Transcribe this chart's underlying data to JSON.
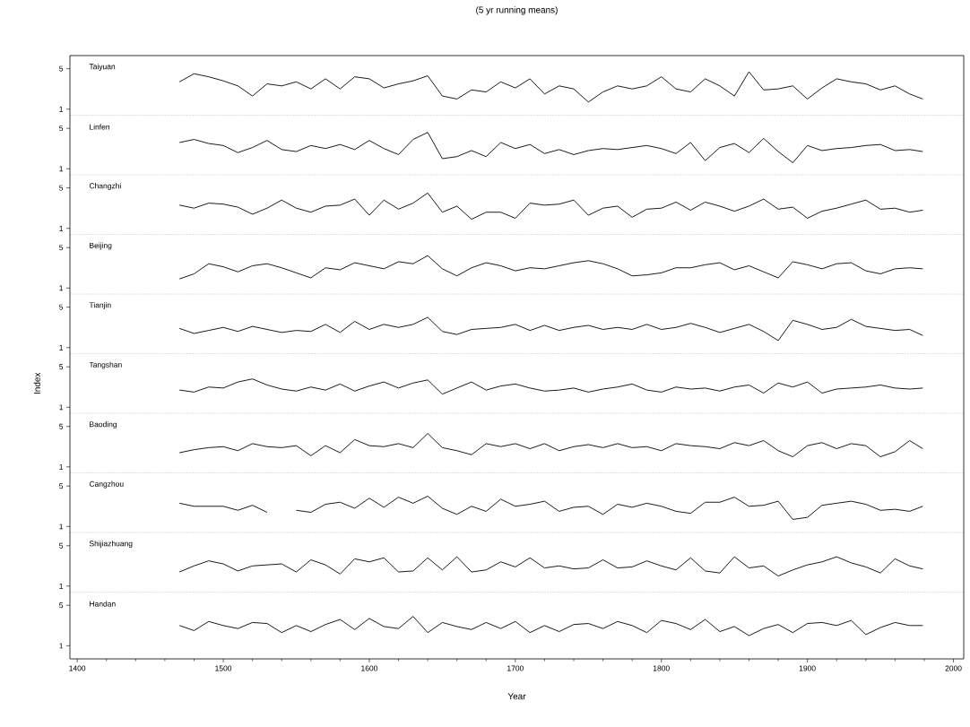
{
  "chart_data": [
    {
      "type": "line",
      "title": "(5 yr running means)",
      "annotations": [
        "Taiyuan"
      ],
      "xlim": [
        1395,
        2007
      ],
      "ylim": [
        0.4,
        6.3
      ],
      "yticks": [
        1,
        5
      ],
      "tick_labels": "y",
      "x": [
        1470,
        1480,
        1490,
        1500,
        1510,
        1520,
        1530,
        1540,
        1550,
        1560,
        1570,
        1580,
        1590,
        1600,
        1610,
        1620,
        1630,
        1640,
        1650,
        1660,
        1670,
        1680,
        1690,
        1700,
        1710,
        1720,
        1730,
        1740,
        1750,
        1760,
        1770,
        1780,
        1790,
        1800,
        1810,
        1820,
        1830,
        1840,
        1850,
        1860,
        1870,
        1880,
        1890,
        1900,
        1910,
        1920,
        1930,
        1940,
        1950,
        1960,
        1970,
        1979
      ],
      "series": [
        {
          "color": "#000000",
          "values": [
            3.7,
            4.5,
            4.2,
            3.8,
            3.3,
            2.3,
            3.5,
            3.3,
            3.7,
            3.0,
            4.0,
            3.0,
            4.2,
            4.0,
            3.1,
            3.5,
            3.8,
            4.3,
            2.3,
            2.0,
            2.9,
            2.7,
            3.7,
            3.1,
            4.0,
            2.5,
            3.3,
            3.0,
            1.7,
            2.7,
            3.3,
            3.0,
            3.3,
            4.2,
            3.0,
            2.7,
            4.0,
            3.3,
            2.3,
            4.7,
            2.9,
            3.0,
            3.3,
            2.0,
            3.1,
            4.0,
            3.7,
            3.5,
            2.9,
            3.3,
            2.5,
            2.0
          ]
        }
      ]
    },
    {
      "type": "line",
      "annotations": [
        "Linfen"
      ],
      "xlim": [
        1395,
        2007
      ],
      "ylim": [
        0.4,
        6.3
      ],
      "yticks": [
        1,
        5
      ],
      "tick_labels": "y",
      "x": [
        1470,
        1480,
        1490,
        1500,
        1510,
        1520,
        1530,
        1540,
        1550,
        1560,
        1570,
        1580,
        1590,
        1600,
        1610,
        1620,
        1630,
        1640,
        1650,
        1660,
        1670,
        1680,
        1690,
        1700,
        1710,
        1720,
        1730,
        1740,
        1750,
        1760,
        1770,
        1780,
        1790,
        1800,
        1810,
        1820,
        1830,
        1840,
        1850,
        1860,
        1870,
        1880,
        1890,
        1900,
        1910,
        1920,
        1930,
        1940,
        1950,
        1960,
        1970,
        1979
      ],
      "series": [
        {
          "color": "#000000",
          "values": [
            3.6,
            3.9,
            3.5,
            3.3,
            2.6,
            3.1,
            3.8,
            2.9,
            2.7,
            3.3,
            3.0,
            3.4,
            2.9,
            3.8,
            3.0,
            2.4,
            3.9,
            4.6,
            2.0,
            2.2,
            2.8,
            2.2,
            3.6,
            3.0,
            3.4,
            2.5,
            2.9,
            2.4,
            2.8,
            3.0,
            2.9,
            3.1,
            3.3,
            3.0,
            2.5,
            3.6,
            1.8,
            3.1,
            3.5,
            2.6,
            4.0,
            2.7,
            1.6,
            3.3,
            2.8,
            3.0,
            3.1,
            3.3,
            3.4,
            2.8,
            2.9,
            2.7
          ]
        }
      ]
    },
    {
      "type": "line",
      "annotations": [
        "Changzhi"
      ],
      "xlim": [
        1395,
        2007
      ],
      "ylim": [
        0.4,
        6.3
      ],
      "yticks": [
        1,
        5
      ],
      "tick_labels": "y",
      "x": [
        1470,
        1480,
        1490,
        1500,
        1510,
        1520,
        1530,
        1540,
        1550,
        1560,
        1570,
        1580,
        1590,
        1600,
        1610,
        1620,
        1630,
        1640,
        1650,
        1660,
        1670,
        1680,
        1690,
        1700,
        1710,
        1720,
        1730,
        1740,
        1750,
        1760,
        1770,
        1780,
        1790,
        1800,
        1810,
        1820,
        1830,
        1840,
        1850,
        1860,
        1870,
        1880,
        1890,
        1900,
        1910,
        1920,
        1930,
        1940,
        1950,
        1960,
        1970,
        1979
      ],
      "series": [
        {
          "color": "#000000",
          "values": [
            3.3,
            3.0,
            3.5,
            3.4,
            3.1,
            2.4,
            3.0,
            3.8,
            3.0,
            2.6,
            3.2,
            3.3,
            3.9,
            2.3,
            3.8,
            2.9,
            3.5,
            4.5,
            2.6,
            3.2,
            1.9,
            2.6,
            2.6,
            2.0,
            3.5,
            3.3,
            3.4,
            3.8,
            2.3,
            3.0,
            3.2,
            2.1,
            2.9,
            3.0,
            3.6,
            2.8,
            3.6,
            3.2,
            2.7,
            3.2,
            3.9,
            2.9,
            3.1,
            2.0,
            2.7,
            3.0,
            3.4,
            3.8,
            2.9,
            3.0,
            2.6,
            2.8
          ]
        }
      ]
    },
    {
      "type": "line",
      "annotations": [
        "Beijing"
      ],
      "xlim": [
        1395,
        2007
      ],
      "ylim": [
        0.4,
        6.3
      ],
      "yticks": [
        1,
        5
      ],
      "tick_labels": "y",
      "x": [
        1470,
        1480,
        1490,
        1500,
        1510,
        1520,
        1530,
        1540,
        1550,
        1560,
        1570,
        1580,
        1590,
        1600,
        1610,
        1620,
        1630,
        1640,
        1650,
        1660,
        1670,
        1680,
        1690,
        1700,
        1710,
        1720,
        1730,
        1740,
        1750,
        1760,
        1770,
        1780,
        1790,
        1800,
        1810,
        1820,
        1830,
        1840,
        1850,
        1860,
        1870,
        1880,
        1890,
        1900,
        1910,
        1920,
        1930,
        1940,
        1950,
        1960,
        1970,
        1979
      ],
      "series": [
        {
          "color": "#000000",
          "values": [
            1.9,
            2.4,
            3.4,
            3.1,
            2.6,
            3.2,
            3.4,
            3.0,
            2.5,
            2.0,
            3.0,
            2.8,
            3.5,
            3.2,
            2.9,
            3.6,
            3.4,
            4.2,
            2.9,
            2.2,
            3.0,
            3.5,
            3.2,
            2.7,
            3.0,
            2.9,
            3.2,
            3.5,
            3.7,
            3.4,
            2.9,
            2.2,
            2.3,
            2.5,
            3.0,
            3.0,
            3.3,
            3.5,
            2.8,
            3.2,
            2.6,
            2.0,
            3.6,
            3.3,
            2.9,
            3.4,
            3.5,
            2.7,
            2.4,
            2.9,
            3.0,
            2.9
          ]
        }
      ]
    },
    {
      "type": "line",
      "annotations": [
        "Tianjin"
      ],
      "xlim": [
        1395,
        2007
      ],
      "ylim": [
        0.4,
        6.3
      ],
      "yticks": [
        1,
        5
      ],
      "tick_labels": "y",
      "x": [
        1470,
        1480,
        1490,
        1500,
        1510,
        1520,
        1530,
        1540,
        1550,
        1560,
        1570,
        1580,
        1590,
        1600,
        1610,
        1620,
        1630,
        1640,
        1650,
        1660,
        1670,
        1680,
        1690,
        1700,
        1710,
        1720,
        1730,
        1740,
        1750,
        1760,
        1770,
        1780,
        1790,
        1800,
        1810,
        1820,
        1830,
        1840,
        1850,
        1860,
        1870,
        1880,
        1890,
        1900,
        1910,
        1920,
        1930,
        1940,
        1950,
        1960,
        1970,
        1979
      ],
      "series": [
        {
          "color": "#000000",
          "values": [
            2.9,
            2.4,
            2.7,
            3.0,
            2.6,
            3.1,
            2.8,
            2.5,
            2.7,
            2.6,
            3.3,
            2.5,
            3.6,
            2.8,
            3.3,
            3.0,
            3.3,
            4.0,
            2.6,
            2.3,
            2.8,
            2.9,
            3.0,
            3.3,
            2.7,
            3.2,
            2.7,
            3.0,
            3.2,
            2.8,
            3.0,
            2.8,
            3.3,
            2.8,
            3.0,
            3.4,
            3.0,
            2.5,
            2.9,
            3.3,
            2.6,
            1.7,
            3.7,
            3.3,
            2.8,
            3.0,
            3.8,
            3.1,
            2.9,
            2.7,
            2.8,
            2.2
          ]
        }
      ]
    },
    {
      "type": "line",
      "annotations": [
        "Tangshan"
      ],
      "ylabel": "Index",
      "xlim": [
        1395,
        2007
      ],
      "ylim": [
        0.4,
        6.3
      ],
      "yticks": [
        1,
        5
      ],
      "tick_labels": "y",
      "x": [
        1470,
        1480,
        1490,
        1500,
        1510,
        1520,
        1530,
        1540,
        1550,
        1560,
        1570,
        1580,
        1590,
        1600,
        1610,
        1620,
        1630,
        1640,
        1650,
        1660,
        1670,
        1680,
        1690,
        1700,
        1710,
        1720,
        1730,
        1740,
        1750,
        1760,
        1770,
        1780,
        1790,
        1800,
        1810,
        1820,
        1830,
        1840,
        1850,
        1860,
        1870,
        1880,
        1890,
        1900,
        1910,
        1920,
        1930,
        1940,
        1950,
        1960,
        1970,
        1979
      ],
      "series": [
        {
          "color": "#000000",
          "values": [
            2.7,
            2.5,
            3.0,
            2.9,
            3.5,
            3.8,
            3.2,
            2.8,
            2.6,
            3.0,
            2.7,
            3.3,
            2.6,
            3.1,
            3.5,
            2.9,
            3.4,
            3.7,
            2.3,
            2.9,
            3.5,
            2.7,
            3.1,
            3.3,
            2.9,
            2.6,
            2.7,
            2.9,
            2.5,
            2.8,
            3.0,
            3.3,
            2.7,
            2.5,
            3.0,
            2.8,
            2.9,
            2.6,
            3.0,
            3.2,
            2.4,
            3.4,
            3.0,
            3.5,
            2.4,
            2.8,
            2.9,
            3.0,
            3.2,
            2.9,
            2.8,
            2.9
          ]
        }
      ]
    },
    {
      "type": "line",
      "annotations": [
        "Baoding"
      ],
      "xlim": [
        1395,
        2007
      ],
      "ylim": [
        0.4,
        6.3
      ],
      "yticks": [
        1,
        5
      ],
      "tick_labels": "y",
      "x": [
        1470,
        1480,
        1490,
        1500,
        1510,
        1520,
        1530,
        1540,
        1550,
        1560,
        1570,
        1580,
        1590,
        1600,
        1610,
        1620,
        1630,
        1640,
        1650,
        1660,
        1670,
        1680,
        1690,
        1700,
        1710,
        1720,
        1730,
        1740,
        1750,
        1760,
        1770,
        1780,
        1790,
        1800,
        1810,
        1820,
        1830,
        1840,
        1850,
        1860,
        1870,
        1880,
        1890,
        1900,
        1910,
        1920,
        1930,
        1940,
        1950,
        1960,
        1970,
        1979
      ],
      "series": [
        {
          "color": "#000000",
          "values": [
            2.4,
            2.7,
            2.9,
            3.0,
            2.6,
            3.3,
            3.0,
            2.9,
            3.1,
            2.1,
            3.1,
            2.4,
            3.7,
            3.1,
            3.0,
            3.3,
            2.9,
            4.3,
            2.9,
            2.6,
            2.2,
            3.3,
            3.0,
            3.3,
            2.8,
            3.3,
            2.6,
            3.0,
            3.2,
            2.9,
            3.3,
            2.9,
            3.0,
            2.6,
            3.3,
            3.1,
            3.0,
            2.8,
            3.4,
            3.1,
            3.6,
            2.6,
            2.0,
            3.1,
            3.4,
            2.8,
            3.3,
            3.1,
            2.0,
            2.5,
            3.6,
            2.8
          ]
        }
      ]
    },
    {
      "type": "line",
      "annotations": [
        "Cangzhou"
      ],
      "xlim": [
        1395,
        2007
      ],
      "ylim": [
        0.4,
        6.3
      ],
      "yticks": [
        1,
        5
      ],
      "tick_labels": "y",
      "x": [
        1470,
        1480,
        1490,
        1500,
        1510,
        1520,
        1530,
        1540,
        1550,
        1560,
        1570,
        1580,
        1590,
        1600,
        1610,
        1620,
        1630,
        1640,
        1650,
        1660,
        1670,
        1680,
        1690,
        1700,
        1710,
        1720,
        1730,
        1740,
        1750,
        1760,
        1770,
        1780,
        1790,
        1800,
        1810,
        1820,
        1830,
        1840,
        1850,
        1860,
        1870,
        1880,
        1890,
        1900,
        1910,
        1920,
        1930,
        1940,
        1950,
        1960,
        1970,
        1979
      ],
      "series": [
        {
          "color": "#000000",
          "values": [
            3.3,
            3.0,
            3.0,
            3.0,
            2.6,
            3.1,
            2.4,
            null,
            2.6,
            2.4,
            3.2,
            3.4,
            2.8,
            3.8,
            2.9,
            3.9,
            3.3,
            4.0,
            2.8,
            2.2,
            3.0,
            2.5,
            3.7,
            3.0,
            3.2,
            3.5,
            2.5,
            2.9,
            3.0,
            2.2,
            3.2,
            2.9,
            3.3,
            3.0,
            2.5,
            2.3,
            3.4,
            3.4,
            3.9,
            3.0,
            3.1,
            3.5,
            1.7,
            1.9,
            3.1,
            3.3,
            3.5,
            3.2,
            2.6,
            2.7,
            2.5,
            3.0
          ]
        }
      ]
    },
    {
      "type": "line",
      "annotations": [
        "Shijiazhuang"
      ],
      "xlim": [
        1395,
        2007
      ],
      "ylim": [
        0.4,
        6.3
      ],
      "yticks": [
        1,
        5
      ],
      "tick_labels": "y",
      "x": [
        1470,
        1480,
        1490,
        1500,
        1510,
        1520,
        1530,
        1540,
        1550,
        1560,
        1570,
        1580,
        1590,
        1600,
        1610,
        1620,
        1630,
        1640,
        1650,
        1660,
        1670,
        1680,
        1690,
        1700,
        1710,
        1720,
        1730,
        1740,
        1750,
        1760,
        1770,
        1780,
        1790,
        1800,
        1810,
        1820,
        1830,
        1840,
        1850,
        1860,
        1870,
        1880,
        1890,
        1900,
        1910,
        1920,
        1930,
        1940,
        1950,
        1960,
        1970,
        1979
      ],
      "series": [
        {
          "color": "#000000",
          "values": [
            2.4,
            3.0,
            3.5,
            3.2,
            2.5,
            3.0,
            3.1,
            3.2,
            2.4,
            3.6,
            3.1,
            2.2,
            3.7,
            3.4,
            3.8,
            2.4,
            2.5,
            3.8,
            2.6,
            3.9,
            2.4,
            2.6,
            3.4,
            2.9,
            3.8,
            2.8,
            3.0,
            2.7,
            2.8,
            3.6,
            2.8,
            2.9,
            3.5,
            3.0,
            2.6,
            3.8,
            2.5,
            2.3,
            3.9,
            2.8,
            3.0,
            2.0,
            2.6,
            3.1,
            3.4,
            3.9,
            3.3,
            2.9,
            2.3,
            3.7,
            3.0,
            2.7
          ]
        }
      ]
    },
    {
      "type": "line",
      "annotations": [
        "Handan"
      ],
      "xlabel": "Year",
      "xlim": [
        1395,
        2007
      ],
      "ylim": [
        -0.3,
        6.3
      ],
      "yticks": [
        1,
        5
      ],
      "xticks": [
        1400,
        {
          "value": 1420,
          "label": null
        },
        {
          "value": 1440,
          "label": null
        },
        {
          "value": 1460,
          "label": null
        },
        {
          "value": 1480,
          "label": null
        },
        1500,
        {
          "value": 1520,
          "label": null
        },
        {
          "value": 1540,
          "label": null
        },
        {
          "value": 1560,
          "label": null
        },
        {
          "value": 1580,
          "label": null
        },
        1600,
        {
          "value": 1620,
          "label": null
        },
        {
          "value": 1640,
          "label": null
        },
        {
          "value": 1660,
          "label": null
        },
        {
          "value": 1680,
          "label": null
        },
        1700,
        {
          "value": 1720,
          "label": null
        },
        {
          "value": 1740,
          "label": null
        },
        {
          "value": 1760,
          "label": null
        },
        {
          "value": 1780,
          "label": null
        },
        1800,
        {
          "value": 1820,
          "label": null
        },
        {
          "value": 1840,
          "label": null
        },
        {
          "value": 1860,
          "label": null
        },
        {
          "value": 1880,
          "label": null
        },
        1900,
        {
          "value": 1920,
          "label": null
        },
        {
          "value": 1940,
          "label": null
        },
        {
          "value": 1960,
          "label": null
        },
        {
          "value": 1980,
          "label": null
        },
        2000
      ],
      "x": [
        1470,
        1480,
        1490,
        1500,
        1510,
        1520,
        1530,
        1540,
        1550,
        1560,
        1570,
        1580,
        1590,
        1600,
        1610,
        1620,
        1630,
        1640,
        1650,
        1660,
        1670,
        1680,
        1690,
        1700,
        1710,
        1720,
        1730,
        1740,
        1750,
        1760,
        1770,
        1780,
        1790,
        1800,
        1810,
        1820,
        1830,
        1840,
        1850,
        1860,
        1870,
        1880,
        1890,
        1900,
        1910,
        1920,
        1930,
        1940,
        1950,
        1960,
        1970,
        1979
      ],
      "series": [
        {
          "color": "#000000",
          "values": [
            3.0,
            2.5,
            3.4,
            3.0,
            2.7,
            3.3,
            3.2,
            2.3,
            3.0,
            2.4,
            3.1,
            3.6,
            2.6,
            3.7,
            2.9,
            2.7,
            3.9,
            2.3,
            3.3,
            2.9,
            2.6,
            3.3,
            2.7,
            3.4,
            2.3,
            3.0,
            2.4,
            3.1,
            3.2,
            2.7,
            3.4,
            3.0,
            2.3,
            3.5,
            3.2,
            2.6,
            3.6,
            2.4,
            2.9,
            2.0,
            2.7,
            3.1,
            2.3,
            3.2,
            3.3,
            3.0,
            3.5,
            2.1,
            2.8,
            3.3,
            3.0,
            3.0
          ]
        }
      ]
    }
  ]
}
